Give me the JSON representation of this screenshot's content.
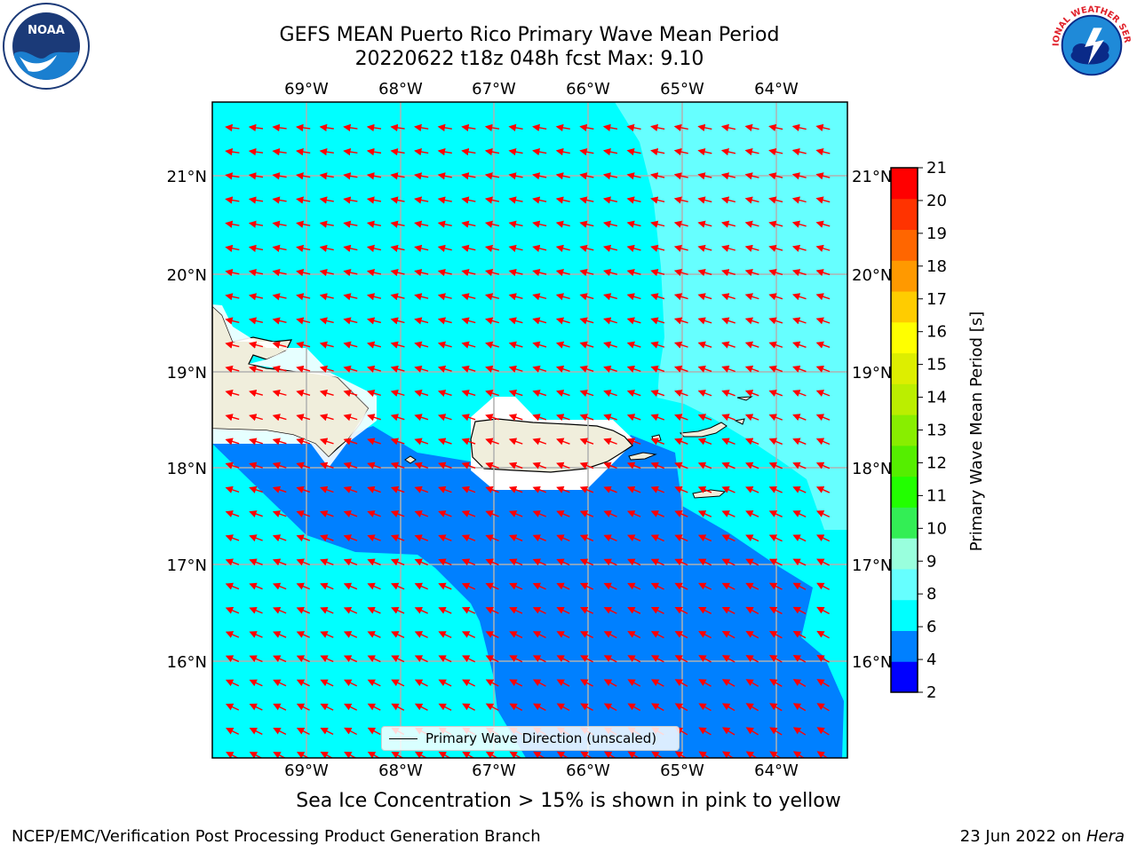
{
  "title": {
    "line1": "GEFS MEAN Puerto Rico Primary Wave Mean Period",
    "line2": "20220622 t18z 048h fcst   Max: 9.10"
  },
  "axes": {
    "lon_labels": [
      "69°W",
      "68°W",
      "67°W",
      "66°W",
      "65°W",
      "64°W"
    ],
    "lat_labels": [
      "21°N",
      "20°N",
      "19°N",
      "18°N",
      "17°N",
      "16°N"
    ]
  },
  "legend": {
    "label": "Primary Wave Direction (unscaled)"
  },
  "colorbar": {
    "label": "Primary Wave Mean Period [s]",
    "ticks": [
      "2",
      "4",
      "6",
      "8",
      "9",
      "10",
      "11",
      "12",
      "13",
      "14",
      "15",
      "16",
      "17",
      "18",
      "19",
      "20",
      "21"
    ],
    "colors": [
      "#0000ff",
      "#0080ff",
      "#00ffff",
      "#66ffff",
      "#99ffdd",
      "#33ee55",
      "#22ff00",
      "#55ee00",
      "#88ee00",
      "#bbee00",
      "#ddee00",
      "#ffff00",
      "#ffcc00",
      "#ff9900",
      "#ff6600",
      "#ff3300",
      "#ff0000"
    ]
  },
  "footer": {
    "ice_note": "Sea Ice Concentration > 15% is shown in pink to yellow",
    "credit_left": "NCEP/EMC/Verification Post Processing Product Generation Branch",
    "credit_right_date": "23 Jun 2022 on ",
    "credit_right_machine": "Hera"
  },
  "logos": {
    "noaa_text": "NOAA",
    "nws_text": "NATIONAL WEATHER SERVICE"
  },
  "colors": {
    "land": "#f0eedc",
    "sea_6_8": "#00ffff",
    "sea_4_6": "#0080ff",
    "sea_8_9": "#66ffff",
    "arrow": "#ff0000"
  }
}
